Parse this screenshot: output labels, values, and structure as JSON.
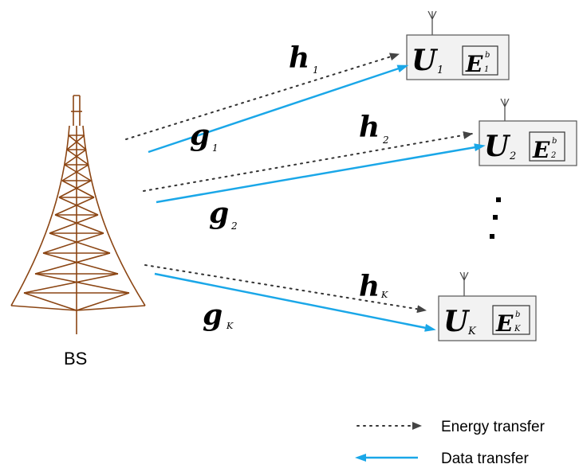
{
  "base_station": {
    "label": "BS"
  },
  "users": [
    {
      "name": "U",
      "sub": "1",
      "energy": "E",
      "energy_sup": "b",
      "energy_sub": "1",
      "downlink": "h",
      "downlink_sub": "1",
      "uplink": "g",
      "uplink_sub": "1"
    },
    {
      "name": "U",
      "sub": "2",
      "energy": "E",
      "energy_sup": "b",
      "energy_sub": "2",
      "downlink": "h",
      "downlink_sub": "2",
      "uplink": "g",
      "uplink_sub": "2"
    },
    {
      "name": "U",
      "sub": "K",
      "energy": "E",
      "energy_sup": "b",
      "energy_sub": "K",
      "downlink": "h",
      "downlink_sub": "K",
      "uplink": "g",
      "uplink_sub": "K"
    }
  ],
  "legend": {
    "energy": "Energy transfer",
    "data": "Data transfer"
  },
  "colors": {
    "tower": "#8B4513",
    "energy_arrow": "#333333",
    "data_arrow": "#1AA7E8",
    "box_fill": "#F2F2F2",
    "box_stroke": "#555555"
  }
}
